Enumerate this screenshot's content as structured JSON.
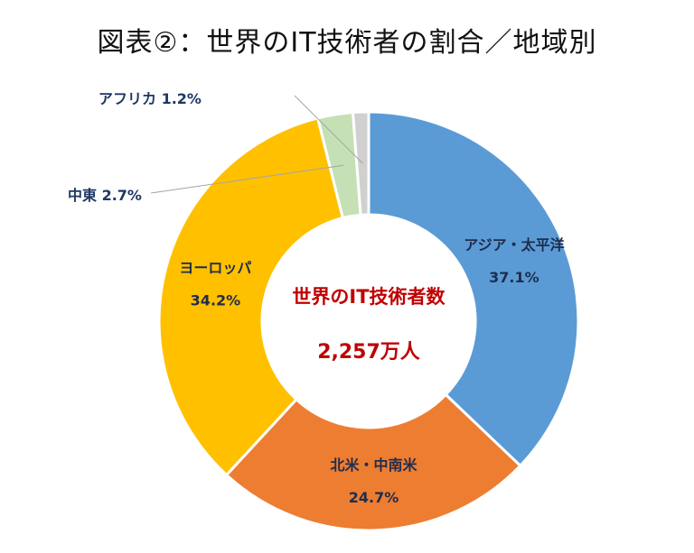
{
  "title": "図表②：世界のIT技術者の割合／地域別",
  "center": {
    "line1": "世界のIT技術者数",
    "line2": "2,257万人",
    "color": "#c00000"
  },
  "chart_data": {
    "type": "pie",
    "variant": "donut",
    "title": "図表②：世界のIT技術者の割合／地域別",
    "unit": "%",
    "slices": [
      {
        "name": "アジア・太平洋",
        "value": 37.1,
        "label": "37.1%",
        "color": "#5b9bd5"
      },
      {
        "name": "北米・中南米",
        "value": 24.7,
        "label": "24.7%",
        "color": "#ed7d31"
      },
      {
        "name": "ヨーロッパ",
        "value": 34.2,
        "label": "34.2%",
        "color": "#ffc000"
      },
      {
        "name": "中東",
        "value": 2.7,
        "label": "2.7%",
        "color": "#c5e0b4"
      },
      {
        "name": "アフリカ",
        "value": 1.2,
        "label": "1.2%",
        "color": "#d0d0d0"
      }
    ]
  },
  "colors": {
    "label_dark": "#1f3864",
    "label_on_slice": "#1f2d4d",
    "leader_line": "#a6a6a6"
  }
}
